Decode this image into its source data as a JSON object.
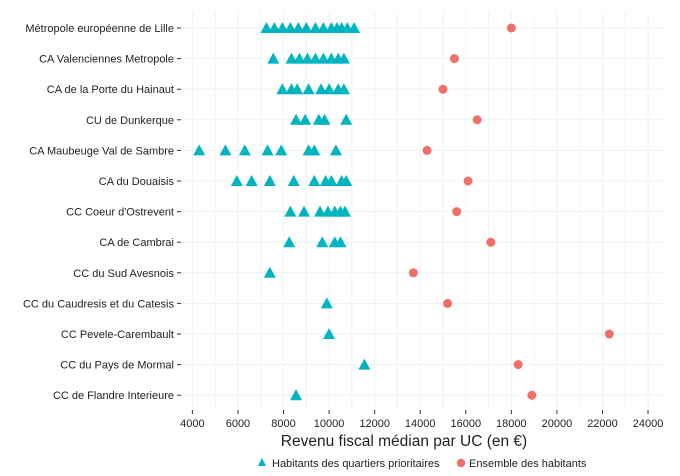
{
  "chart_data": {
    "type": "scatter",
    "xlabel": "Revenu fiscal médian par UC (en €)",
    "ylabel": "",
    "xlim": [
      3500,
      24700
    ],
    "x_ticks": [
      4000,
      6000,
      8000,
      10000,
      12000,
      14000,
      16000,
      18000,
      20000,
      22000,
      24000
    ],
    "grid": true,
    "legend_position": "bottom",
    "categories": [
      "Métropole européenne de Lille",
      "CA Valenciennes Metropole",
      "CA de la Porte du Hainaut",
      "CU de Dunkerque",
      "CA Maubeuge Val de Sambre",
      "CA du Douaisis",
      "CC Coeur d'Ostrevent",
      "CA de Cambrai",
      "CC du Sud Avesnois",
      "CC du Caudresis et du Catesis",
      "CC Pevele-Carembault",
      "CC du Pays de Mormal",
      "CC de Flandre Interieure"
    ],
    "series": [
      {
        "name": "Habitants des quartiers prioritaires",
        "marker": "triangle",
        "color": "#00b5bf",
        "values": [
          [
            7250,
            7600,
            7950,
            8300,
            8650,
            9000,
            9400,
            9750,
            10100,
            10350,
            10550,
            10800,
            11100
          ],
          [
            7550,
            8350,
            8700,
            9050,
            9400,
            9750,
            10100,
            10400,
            10650
          ],
          [
            7950,
            8350,
            8600,
            9100,
            9650,
            10000,
            10400,
            10650
          ],
          [
            8550,
            8950,
            9550,
            9800,
            10750
          ],
          [
            4300,
            5450,
            6300,
            7300,
            7900,
            9100,
            9350,
            10300
          ],
          [
            5950,
            6600,
            7400,
            8450,
            9350,
            9850,
            10100,
            10550,
            10750
          ],
          [
            8300,
            8900,
            9600,
            9950,
            10250,
            10500,
            10700
          ],
          [
            8250,
            9700,
            10250,
            10500
          ],
          [
            7400
          ],
          [
            9900
          ],
          [
            10000
          ],
          [
            11550
          ],
          [
            8550
          ]
        ]
      },
      {
        "name": "Ensemble des habitants",
        "marker": "circle",
        "color": "#f07068",
        "values": [
          18000,
          15500,
          15000,
          16500,
          14300,
          16100,
          15600,
          17100,
          13700,
          15200,
          22300,
          18300,
          18900
        ]
      }
    ]
  }
}
